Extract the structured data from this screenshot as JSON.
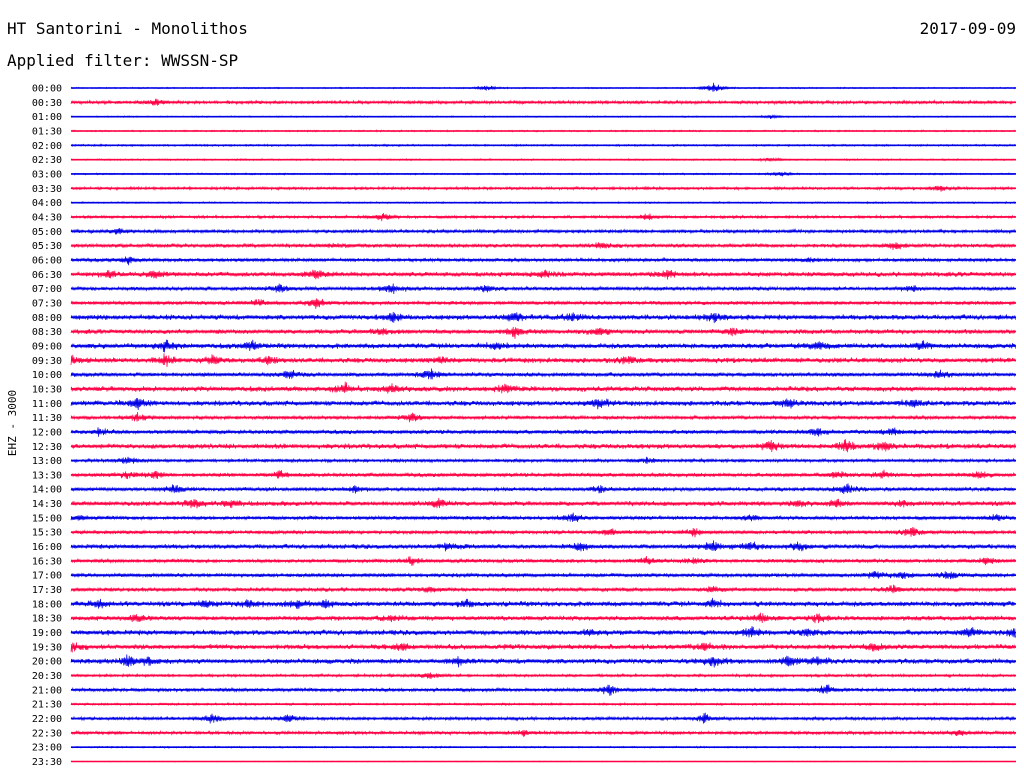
{
  "header": {
    "station": "HT Santorini - Monolithos",
    "date": "2017-09-09",
    "filter": "Applied filter: WWSSN-SP",
    "channel": "EHZ - 3000"
  },
  "colors": {
    "trace_a": "#0000e6",
    "trace_b": "#ff0044",
    "text": "#000000",
    "background": "#ffffff"
  },
  "chart_data": {
    "type": "line",
    "chart_kind": "helicorder (seismogram drum)",
    "rows": [
      {
        "label": "00:00",
        "color": "trace_a",
        "noise": 0.5,
        "events": [
          [
            0.44,
            2.2
          ],
          [
            0.68,
            4.5
          ]
        ]
      },
      {
        "label": "00:30",
        "color": "trace_b",
        "noise": 1.2,
        "events": [
          [
            0.09,
            2.8
          ]
        ]
      },
      {
        "label": "01:00",
        "color": "trace_a",
        "noise": 0.5,
        "events": [
          [
            0.74,
            1.4
          ]
        ]
      },
      {
        "label": "01:30",
        "color": "trace_b",
        "noise": 0.6,
        "events": []
      },
      {
        "label": "02:00",
        "color": "trace_a",
        "noise": 0.7,
        "events": []
      },
      {
        "label": "02:30",
        "color": "trace_b",
        "noise": 0.6,
        "events": [
          [
            0.74,
            1.5
          ]
        ]
      },
      {
        "label": "03:00",
        "color": "trace_a",
        "noise": 0.6,
        "events": [
          [
            0.75,
            2.2
          ]
        ]
      },
      {
        "label": "03:30",
        "color": "trace_b",
        "noise": 1.0,
        "events": [
          [
            0.92,
            2.5
          ]
        ]
      },
      {
        "label": "04:00",
        "color": "trace_a",
        "noise": 0.6,
        "events": []
      },
      {
        "label": "04:30",
        "color": "trace_b",
        "noise": 1.0,
        "events": [
          [
            0.33,
            3.5
          ],
          [
            0.61,
            3.0
          ]
        ]
      },
      {
        "label": "05:00",
        "color": "trace_a",
        "noise": 1.3,
        "events": [
          [
            0.05,
            2.5
          ]
        ]
      },
      {
        "label": "05:30",
        "color": "trace_b",
        "noise": 1.5,
        "events": [
          [
            0.28,
            1.8
          ],
          [
            0.56,
            2.5
          ],
          [
            0.87,
            3.2
          ]
        ]
      },
      {
        "label": "06:00",
        "color": "trace_a",
        "noise": 1.3,
        "events": [
          [
            0.06,
            3.0
          ],
          [
            0.78,
            2.0
          ]
        ]
      },
      {
        "label": "06:30",
        "color": "trace_b",
        "noise": 1.8,
        "events": [
          [
            0.04,
            3.0
          ],
          [
            0.09,
            3.5
          ],
          [
            0.26,
            4.5
          ],
          [
            0.5,
            3.0
          ],
          [
            0.63,
            3.2
          ]
        ]
      },
      {
        "label": "07:00",
        "color": "trace_a",
        "noise": 1.5,
        "events": [
          [
            0.22,
            3.5
          ],
          [
            0.34,
            4.5
          ],
          [
            0.44,
            3.0
          ],
          [
            0.89,
            3.0
          ]
        ]
      },
      {
        "label": "07:30",
        "color": "trace_b",
        "noise": 1.4,
        "events": [
          [
            0.2,
            3.0
          ],
          [
            0.26,
            4.5
          ]
        ]
      },
      {
        "label": "08:00",
        "color": "trace_a",
        "noise": 2.0,
        "events": [
          [
            0.34,
            4.0
          ],
          [
            0.47,
            4.0
          ],
          [
            0.53,
            3.0
          ],
          [
            0.68,
            4.0
          ]
        ]
      },
      {
        "label": "08:30",
        "color": "trace_b",
        "noise": 1.8,
        "events": [
          [
            0.33,
            2.5
          ],
          [
            0.47,
            4.0
          ],
          [
            0.56,
            4.0
          ],
          [
            0.7,
            3.0
          ]
        ]
      },
      {
        "label": "09:00",
        "color": "trace_a",
        "noise": 2.0,
        "events": [
          [
            0.1,
            4.5
          ],
          [
            0.19,
            3.5
          ],
          [
            0.45,
            3.0
          ],
          [
            0.79,
            4.0
          ],
          [
            0.9,
            4.0
          ]
        ]
      },
      {
        "label": "09:30",
        "color": "trace_b",
        "noise": 2.0,
        "events": [
          [
            0.0,
            4.0
          ],
          [
            0.1,
            4.0
          ],
          [
            0.15,
            3.5
          ],
          [
            0.21,
            3.5
          ],
          [
            0.39,
            3.0
          ],
          [
            0.59,
            3.0
          ]
        ]
      },
      {
        "label": "10:00",
        "color": "trace_a",
        "noise": 1.6,
        "events": [
          [
            0.23,
            4.0
          ],
          [
            0.38,
            4.5
          ],
          [
            0.92,
            4.5
          ]
        ]
      },
      {
        "label": "10:30",
        "color": "trace_b",
        "noise": 2.0,
        "events": [
          [
            0.29,
            4.0
          ],
          [
            0.34,
            3.0
          ],
          [
            0.46,
            4.0
          ]
        ]
      },
      {
        "label": "11:00",
        "color": "trace_a",
        "noise": 2.0,
        "events": [
          [
            0.07,
            4.5
          ],
          [
            0.56,
            4.5
          ],
          [
            0.76,
            3.5
          ],
          [
            0.89,
            3.5
          ]
        ]
      },
      {
        "label": "11:30",
        "color": "trace_b",
        "noise": 1.4,
        "events": [
          [
            0.07,
            3.0
          ],
          [
            0.36,
            4.0
          ]
        ]
      },
      {
        "label": "12:00",
        "color": "trace_a",
        "noise": 1.6,
        "events": [
          [
            0.03,
            3.0
          ],
          [
            0.79,
            3.5
          ],
          [
            0.87,
            3.0
          ]
        ]
      },
      {
        "label": "12:30",
        "color": "trace_b",
        "noise": 2.0,
        "events": [
          [
            0.74,
            4.0
          ],
          [
            0.82,
            4.5
          ],
          [
            0.86,
            3.5
          ]
        ]
      },
      {
        "label": "13:00",
        "color": "trace_a",
        "noise": 1.2,
        "events": [
          [
            0.06,
            3.5
          ],
          [
            0.61,
            2.5
          ]
        ]
      },
      {
        "label": "13:30",
        "color": "trace_b",
        "noise": 1.5,
        "events": [
          [
            0.06,
            3.0
          ],
          [
            0.09,
            3.0
          ],
          [
            0.22,
            3.0
          ],
          [
            0.81,
            3.0
          ],
          [
            0.86,
            3.0
          ],
          [
            0.96,
            3.0
          ]
        ]
      },
      {
        "label": "14:00",
        "color": "trace_a",
        "noise": 1.5,
        "events": [
          [
            0.11,
            4.5
          ],
          [
            0.3,
            3.0
          ],
          [
            0.56,
            2.5
          ],
          [
            0.82,
            4.5
          ]
        ]
      },
      {
        "label": "14:30",
        "color": "trace_b",
        "noise": 1.8,
        "events": [
          [
            0.13,
            3.5
          ],
          [
            0.17,
            3.5
          ],
          [
            0.39,
            4.0
          ],
          [
            0.77,
            3.0
          ],
          [
            0.81,
            3.5
          ],
          [
            0.88,
            2.5
          ]
        ]
      },
      {
        "label": "15:00",
        "color": "trace_a",
        "noise": 1.4,
        "events": [
          [
            0.01,
            2.5
          ],
          [
            0.53,
            4.0
          ],
          [
            0.72,
            2.5
          ],
          [
            0.98,
            2.5
          ]
        ]
      },
      {
        "label": "15:30",
        "color": "trace_b",
        "noise": 1.4,
        "events": [
          [
            0.57,
            3.0
          ],
          [
            0.66,
            3.0
          ],
          [
            0.89,
            4.5
          ]
        ]
      },
      {
        "label": "16:00",
        "color": "trace_a",
        "noise": 1.8,
        "events": [
          [
            0.4,
            3.5
          ],
          [
            0.54,
            3.5
          ],
          [
            0.68,
            4.5
          ],
          [
            0.72,
            3.5
          ],
          [
            0.77,
            3.5
          ]
        ]
      },
      {
        "label": "16:30",
        "color": "trace_b",
        "noise": 1.4,
        "events": [
          [
            0.36,
            3.5
          ],
          [
            0.61,
            3.0
          ],
          [
            0.66,
            3.0
          ],
          [
            0.97,
            3.0
          ]
        ]
      },
      {
        "label": "17:00",
        "color": "trace_a",
        "noise": 1.5,
        "events": [
          [
            0.85,
            3.0
          ],
          [
            0.88,
            3.0
          ],
          [
            0.93,
            3.5
          ]
        ]
      },
      {
        "label": "17:30",
        "color": "trace_b",
        "noise": 1.5,
        "events": [
          [
            0.38,
            2.5
          ],
          [
            0.68,
            3.0
          ],
          [
            0.87,
            3.5
          ]
        ]
      },
      {
        "label": "18:00",
        "color": "trace_a",
        "noise": 2.0,
        "events": [
          [
            0.03,
            3.0
          ],
          [
            0.14,
            3.0
          ],
          [
            0.19,
            4.0
          ],
          [
            0.24,
            4.0
          ],
          [
            0.27,
            3.0
          ],
          [
            0.42,
            2.5
          ],
          [
            0.68,
            3.0
          ]
        ]
      },
      {
        "label": "18:30",
        "color": "trace_b",
        "noise": 1.8,
        "events": [
          [
            0.07,
            3.0
          ],
          [
            0.34,
            2.5
          ],
          [
            0.73,
            4.0
          ],
          [
            0.79,
            3.5
          ]
        ]
      },
      {
        "label": "19:00",
        "color": "trace_a",
        "noise": 2.0,
        "events": [
          [
            0.55,
            2.5
          ],
          [
            0.72,
            4.5
          ],
          [
            0.78,
            3.0
          ],
          [
            0.95,
            4.5
          ],
          [
            1.0,
            5.0
          ]
        ]
      },
      {
        "label": "19:30",
        "color": "trace_b",
        "noise": 2.0,
        "events": [
          [
            0.0,
            3.5
          ],
          [
            0.35,
            3.0
          ],
          [
            0.67,
            3.0
          ],
          [
            0.85,
            3.0
          ]
        ]
      },
      {
        "label": "20:00",
        "color": "trace_a",
        "noise": 2.0,
        "events": [
          [
            0.06,
            4.0
          ],
          [
            0.08,
            3.0
          ],
          [
            0.41,
            3.0
          ],
          [
            0.68,
            4.5
          ],
          [
            0.76,
            4.5
          ],
          [
            0.79,
            3.5
          ]
        ]
      },
      {
        "label": "20:30",
        "color": "trace_b",
        "noise": 1.0,
        "events": [
          [
            0.38,
            3.5
          ]
        ]
      },
      {
        "label": "21:00",
        "color": "trace_a",
        "noise": 1.4,
        "events": [
          [
            0.57,
            4.0
          ],
          [
            0.8,
            4.0
          ]
        ]
      },
      {
        "label": "21:30",
        "color": "trace_b",
        "noise": 0.8,
        "events": []
      },
      {
        "label": "22:00",
        "color": "trace_a",
        "noise": 1.2,
        "events": [
          [
            0.15,
            4.0
          ],
          [
            0.23,
            3.5
          ],
          [
            0.67,
            4.0
          ]
        ]
      },
      {
        "label": "22:30",
        "color": "trace_b",
        "noise": 1.2,
        "events": [
          [
            0.48,
            3.0
          ],
          [
            0.94,
            2.5
          ]
        ]
      },
      {
        "label": "23:00",
        "color": "trace_a",
        "noise": 0.6,
        "events": []
      },
      {
        "label": "23:30",
        "color": "trace_b",
        "noise": 0.3,
        "events": []
      }
    ]
  }
}
